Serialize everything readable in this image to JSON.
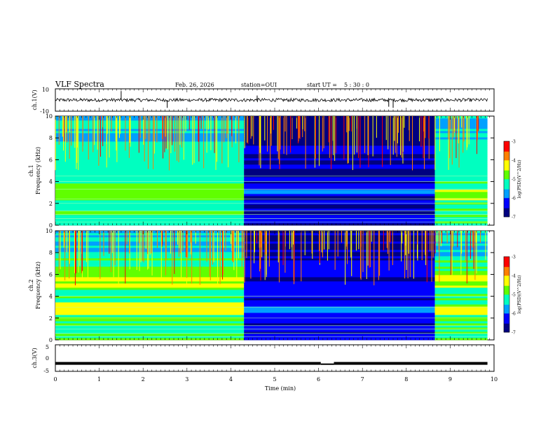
{
  "header": {
    "title": "VLF Spectra",
    "date": "Feb. 26, 2026",
    "station": "station=OUI",
    "start_label": "start  UT =",
    "start_time": "5 : 30 : 0"
  },
  "colors": {
    "colormap": [
      "#000080",
      "#0000ff",
      "#00a0ff",
      "#00ffc0",
      "#60ff00",
      "#ffff00",
      "#ff8000",
      "#ff0000",
      "#ffffff"
    ],
    "trace": "#000000"
  },
  "chart_data": [
    {
      "type": "line",
      "name": "ch1-waveform",
      "ylabel": "ch.1(V)",
      "xlim": [
        0,
        10
      ],
      "ylim": [
        -10,
        10
      ],
      "yticks": [
        "10",
        "-10"
      ],
      "baseline": 0,
      "spikes": [
        {
          "x": 1.5,
          "y": 8
        },
        {
          "x": 2.55,
          "y": -7
        },
        {
          "x": 4.6,
          "y": 4
        },
        {
          "x": 7.6,
          "y": -6
        },
        {
          "x": 7.7,
          "y": -7
        }
      ]
    },
    {
      "type": "heatmap",
      "name": "ch1-spectrogram",
      "xlabel": "",
      "ylabel": "ch.1 Frequency (kHz)",
      "xlim": [
        0,
        9.85
      ],
      "ylim": [
        0,
        10
      ],
      "yticks": [
        "0",
        "2",
        "4",
        "6",
        "8",
        "10"
      ],
      "colorbar": {
        "label": "log(PSD)(V^2/Hz)",
        "ticks": [
          "-3",
          "-4",
          "-5",
          "-6",
          "-7"
        ],
        "range": [
          -7,
          -3
        ]
      },
      "segments": [
        {
          "t_start": 0,
          "t_end": 4.3,
          "level": -5.2,
          "bands_khz": [
            [
              2.3,
              3.8,
              -4.8
            ],
            [
              4.8,
              6.5,
              -5.3
            ]
          ]
        },
        {
          "t_start": 4.3,
          "t_end": 8.65,
          "level": -6.5,
          "bands_khz": [
            [
              2.8,
              3.2,
              -6.0
            ]
          ]
        },
        {
          "t_start": 8.65,
          "t_end": 9.85,
          "level": -5.2,
          "bands_khz": [
            [
              2.3,
              3.2,
              -4.6
            ],
            [
              4.8,
              6.0,
              -5.3
            ]
          ]
        }
      ],
      "lines_khz": [
        0.3,
        0.6,
        1.0,
        1.3,
        2.0,
        2.4,
        3.3,
        4.0,
        4.5
      ]
    },
    {
      "type": "heatmap",
      "name": "ch2-spectrogram",
      "xlabel": "",
      "ylabel": "ch.2 Frequency (kHz)",
      "xlim": [
        0,
        9.85
      ],
      "ylim": [
        0,
        10
      ],
      "yticks": [
        "0",
        "2",
        "4",
        "6",
        "8",
        "10"
      ],
      "colorbar": {
        "label": "log(PSD)(V^2/Hz)",
        "ticks": [
          "-3",
          "-4",
          "-5",
          "-6",
          "-7"
        ],
        "range": [
          -7,
          -3
        ]
      },
      "segments": [
        {
          "t_start": 0,
          "t_end": 4.3,
          "level": -5.0,
          "bands_khz": [
            [
              2.3,
              3.5,
              -4.2
            ],
            [
              4.8,
              6.3,
              -4.4
            ]
          ]
        },
        {
          "t_start": 4.3,
          "t_end": 8.65,
          "level": -6.3,
          "bands_khz": [
            [
              2.5,
              3.0,
              -5.8
            ]
          ]
        },
        {
          "t_start": 8.65,
          "t_end": 9.85,
          "level": -5.0,
          "bands_khz": [
            [
              2.3,
              3.0,
              -4.2
            ],
            [
              4.8,
              6.0,
              -4.5
            ]
          ]
        }
      ],
      "lines_khz": [
        0.3,
        0.6,
        1.0,
        1.3,
        2.0,
        3.0,
        4.0
      ]
    },
    {
      "type": "line",
      "name": "ch3-trace",
      "xlabel": "Time (min)",
      "ylabel": "ch.3(V)",
      "xlim": [
        0,
        10
      ],
      "ylim": [
        -5,
        5
      ],
      "yticks": [
        "5",
        "0",
        "-5"
      ],
      "level": -2,
      "dip": {
        "x_start": 6.05,
        "x_end": 6.35,
        "y": -2.3
      }
    }
  ],
  "xaxis": {
    "ticks": [
      "0",
      "1",
      "2",
      "3",
      "4",
      "5",
      "6",
      "7",
      "8",
      "9",
      "10"
    ],
    "label": "Time (min)"
  }
}
